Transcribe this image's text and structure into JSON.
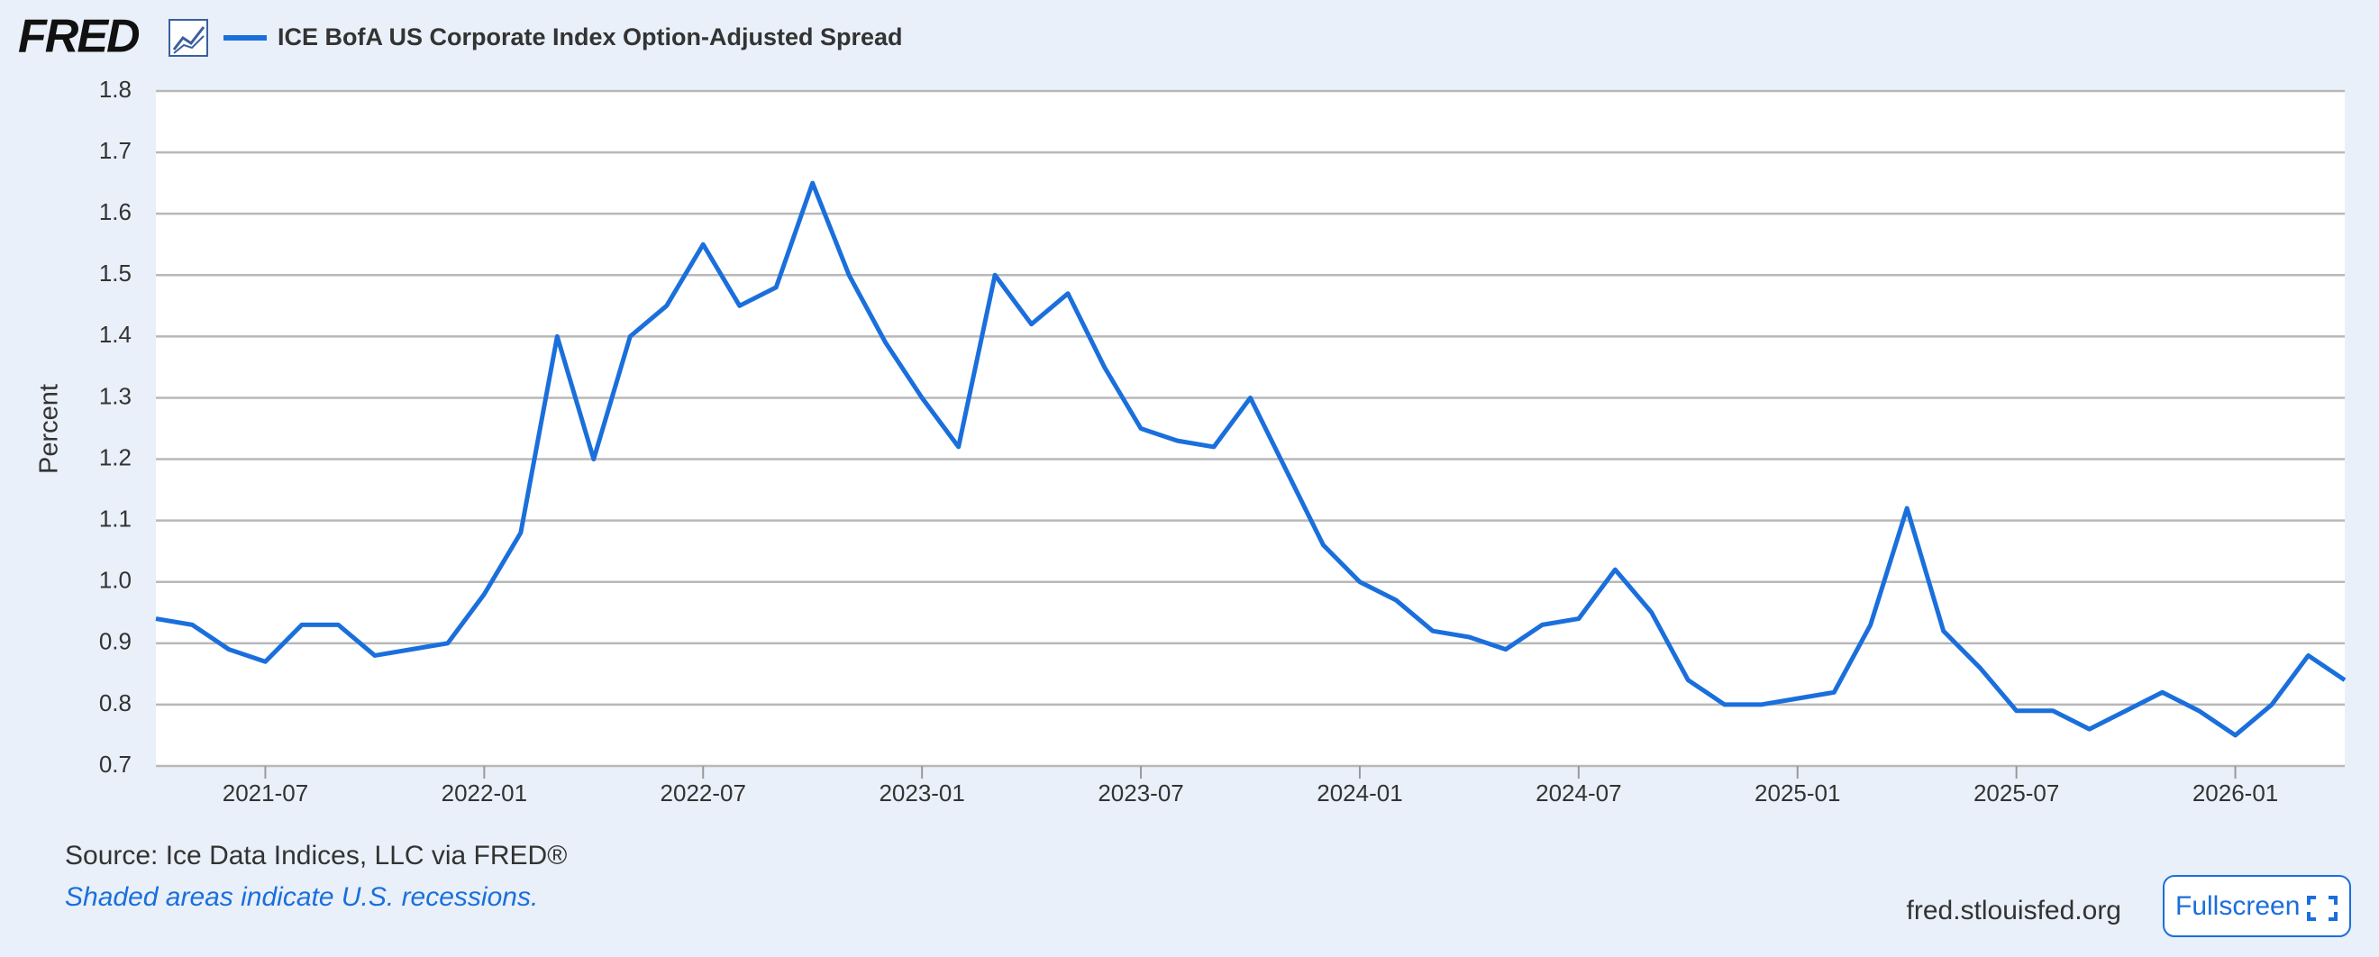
{
  "logo": "FRED",
  "chart_data": {
    "type": "line",
    "ylabel": "Percent",
    "x": [
      "2021-04",
      "2021-05",
      "2021-06",
      "2021-07",
      "2021-08",
      "2021-09",
      "2021-10",
      "2021-11",
      "2021-12",
      "2022-01",
      "2022-02",
      "2022-03",
      "2022-04",
      "2022-05",
      "2022-06",
      "2022-07",
      "2022-08",
      "2022-09",
      "2022-10",
      "2022-11",
      "2022-12",
      "2023-01",
      "2023-02",
      "2023-03",
      "2023-04",
      "2023-05",
      "2023-06",
      "2023-07",
      "2023-08",
      "2023-09",
      "2023-10",
      "2023-11",
      "2023-12",
      "2024-01",
      "2024-02",
      "2024-03",
      "2024-04",
      "2024-05",
      "2024-06",
      "2024-07",
      "2024-08",
      "2024-09",
      "2024-10",
      "2024-11",
      "2024-12",
      "2025-01",
      "2025-02",
      "2025-03",
      "2025-04",
      "2025-05",
      "2025-06",
      "2025-07",
      "2025-08",
      "2025-09",
      "2025-10",
      "2025-11",
      "2025-12",
      "2026-01",
      "2026-02",
      "2026-03",
      "2026-04"
    ],
    "series": [
      {
        "name": "ICE BofA US Corporate Index Option-Adjusted Spread",
        "color": "#1a6fdc",
        "values": [
          0.94,
          0.93,
          0.89,
          0.87,
          0.93,
          0.93,
          0.88,
          0.89,
          0.9,
          0.98,
          1.08,
          1.4,
          1.2,
          1.4,
          1.45,
          1.55,
          1.45,
          1.48,
          1.65,
          1.5,
          1.39,
          1.3,
          1.22,
          1.5,
          1.42,
          1.47,
          1.35,
          1.25,
          1.23,
          1.22,
          1.3,
          1.18,
          1.06,
          1.0,
          0.97,
          0.92,
          0.91,
          0.89,
          0.93,
          0.94,
          1.02,
          0.95,
          0.84,
          0.8,
          0.8,
          0.81,
          0.82,
          0.93,
          1.12,
          0.92,
          0.86,
          0.79,
          0.79,
          0.76,
          0.79,
          0.82,
          0.79,
          0.75,
          0.8,
          0.88,
          0.84
        ]
      }
    ],
    "xlim": [
      "2021-04",
      "2026-04"
    ],
    "xticks": [
      "2021-07",
      "2022-01",
      "2022-07",
      "2023-01",
      "2023-07",
      "2024-01",
      "2024-07",
      "2025-01",
      "2025-07",
      "2026-01"
    ],
    "ylim": [
      0.7,
      1.8
    ],
    "yticks": [
      0.7,
      0.8,
      0.9,
      {
        "value": 1,
        "label": "1.0"
      },
      1.1,
      1.2,
      1.3,
      1.4,
      1.5,
      1.6,
      1.7,
      1.8
    ],
    "grid": true
  },
  "source": "Source: Ice Data Indices, LLC via FRED®",
  "note": "Shaded areas indicate U.S. recessions.",
  "site": "fred.stlouisfed.org",
  "button": "Fullscreen"
}
